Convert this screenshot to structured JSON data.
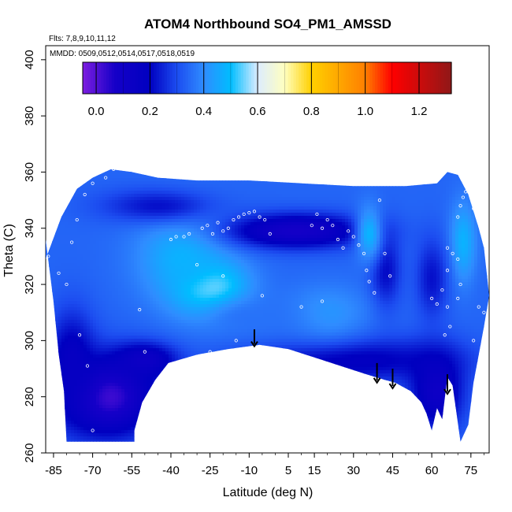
{
  "chart_data": {
    "type": "heatmap",
    "title": "ATOM4 Northbound SO4_PM1_AMSSD",
    "flights_label": "Flts: 7,8,9,10,11,12",
    "dates_label": "MMDD: 0509,0512,0514,0517,0518,0519",
    "xlabel": "Latitude (deg N)",
    "ylabel": "Theta (C)",
    "xlim": [
      -88,
      82
    ],
    "ylim": [
      260,
      405
    ],
    "x_ticks": [
      -85,
      -70,
      -55,
      -40,
      -25,
      -10,
      5,
      15,
      30,
      45,
      60,
      75
    ],
    "x_tick_labels": [
      "-85",
      "-70",
      "-55",
      "-40",
      "-25",
      "-10",
      "5",
      "15",
      "30",
      "45",
      "60",
      "75"
    ],
    "y_ticks": [
      260,
      280,
      300,
      320,
      340,
      360,
      380,
      400
    ],
    "y_tick_labels": [
      "260",
      "280",
      "300",
      "320",
      "340",
      "360",
      "380",
      "400"
    ],
    "colorbar": {
      "range": [
        -0.05,
        1.32
      ],
      "ticks": [
        0,
        0.2,
        0.4,
        0.6,
        0.8,
        1.0,
        1.2
      ],
      "tick_labels": [
        "0.0",
        "0.2",
        "0.4",
        "0.6",
        "0.8",
        "1.0",
        "1.2"
      ],
      "stops": [
        {
          "value": -0.05,
          "color": "#7d1ee0"
        },
        {
          "value": 0.07,
          "color": "#1500c8"
        },
        {
          "value": 0.2,
          "color": "#0000c0"
        },
        {
          "value": 0.3,
          "color": "#1c4cf0"
        },
        {
          "value": 0.4,
          "color": "#2f8cff"
        },
        {
          "value": 0.5,
          "color": "#00bdff"
        },
        {
          "value": 0.6,
          "color": "#dcecff"
        },
        {
          "value": 0.7,
          "color": "#ffffc0"
        },
        {
          "value": 0.8,
          "color": "#ffd000"
        },
        {
          "value": 1.0,
          "color": "#ff7f00"
        },
        {
          "value": 1.1,
          "color": "#ff0000"
        },
        {
          "value": 1.32,
          "color": "#901818"
        }
      ]
    },
    "field": {
      "upper_boundary": [
        [
          -88,
          329
        ],
        [
          -82,
          344
        ],
        [
          -76,
          354
        ],
        [
          -70,
          358
        ],
        [
          -63,
          361
        ],
        [
          -55,
          360
        ],
        [
          -45,
          358
        ],
        [
          -30,
          357
        ],
        [
          -10,
          357
        ],
        [
          10,
          356
        ],
        [
          30,
          355
        ],
        [
          50,
          355
        ],
        [
          62,
          356
        ],
        [
          66,
          360
        ],
        [
          70,
          359
        ],
        [
          74,
          352
        ],
        [
          78,
          340
        ],
        [
          80,
          333
        ],
        [
          82,
          316
        ]
      ],
      "lower_boundary": [
        [
          -88,
          336
        ],
        [
          -85,
          314
        ],
        [
          -83,
          295
        ],
        [
          -81,
          282
        ],
        [
          -80,
          264
        ],
        [
          -54,
          264
        ],
        [
          -54,
          268
        ],
        [
          -51,
          278
        ],
        [
          -46,
          286
        ],
        [
          -41,
          292
        ],
        [
          -30,
          295
        ],
        [
          -18,
          297
        ],
        [
          -6,
          298.5
        ],
        [
          5,
          297
        ],
        [
          15,
          294
        ],
        [
          25,
          291
        ],
        [
          35,
          288
        ],
        [
          42,
          286
        ],
        [
          46,
          285
        ],
        [
          52,
          282
        ],
        [
          56,
          278
        ],
        [
          58,
          274
        ],
        [
          60,
          268
        ],
        [
          62,
          276
        ],
        [
          64,
          272
        ],
        [
          66,
          287
        ],
        [
          68,
          284
        ],
        [
          71,
          264
        ],
        [
          74,
          270
        ],
        [
          76,
          285
        ],
        [
          78,
          295
        ],
        [
          80,
          305
        ],
        [
          82,
          316
        ]
      ],
      "base_value": 0.34,
      "features": [
        {
          "lat": -25,
          "theta": 318,
          "rlat": 14,
          "rtheta": 10,
          "value": 0.62
        },
        {
          "lat": -35,
          "theta": 330,
          "rlat": 18,
          "rtheta": 16,
          "value": 0.48
        },
        {
          "lat": 8,
          "theta": 339,
          "rlat": 26,
          "rtheta": 6,
          "value": 0.08
        },
        {
          "lat": -45,
          "theta": 348,
          "rlat": 22,
          "rtheta": 6,
          "value": 0.22
        },
        {
          "lat": -64,
          "theta": 280,
          "rlat": 18,
          "rtheta": 14,
          "value": 0.02
        },
        {
          "lat": -50,
          "theta": 293,
          "rlat": 12,
          "rtheta": 6,
          "value": 0.12
        },
        {
          "lat": 30,
          "theta": 293,
          "rlat": 40,
          "rtheta": 8,
          "value": 0.18
        },
        {
          "lat": 62,
          "theta": 282,
          "rlat": 10,
          "rtheta": 14,
          "value": 0.12
        },
        {
          "lat": -78,
          "theta": 292,
          "rlat": 9,
          "rtheta": 18,
          "value": 0.16
        },
        {
          "lat": 42,
          "theta": 325,
          "rlat": 6,
          "rtheta": 14,
          "value": 0.2
        },
        {
          "lat": 36,
          "theta": 338,
          "rlat": 5,
          "rtheta": 10,
          "value": 0.48
        },
        {
          "lat": 72,
          "theta": 335,
          "rlat": 5,
          "rtheta": 14,
          "value": 0.48
        },
        {
          "lat": 60,
          "theta": 322,
          "rlat": 6,
          "rtheta": 14,
          "value": 0.22
        },
        {
          "lat": 20,
          "theta": 310,
          "rlat": 16,
          "rtheta": 10,
          "value": 0.42
        },
        {
          "lat": -10,
          "theta": 308,
          "rlat": 20,
          "rtheta": 8,
          "value": 0.36
        }
      ]
    },
    "obs_points": [
      [
        -87,
        330
      ],
      [
        -83,
        324
      ],
      [
        -80,
        320
      ],
      [
        -75,
        302
      ],
      [
        -72,
        291
      ],
      [
        -70,
        268
      ],
      [
        -68,
        263
      ],
      [
        -78,
        335
      ],
      [
        -76,
        343
      ],
      [
        -73,
        352
      ],
      [
        -70,
        356
      ],
      [
        -65,
        358
      ],
      [
        -62,
        361
      ],
      [
        -52,
        311
      ],
      [
        -50,
        296
      ],
      [
        -48,
        278
      ],
      [
        -40,
        336
      ],
      [
        -38,
        337
      ],
      [
        -35,
        337
      ],
      [
        -33,
        338
      ],
      [
        -30,
        327
      ],
      [
        -28,
        340
      ],
      [
        -26,
        341
      ],
      [
        -24,
        338
      ],
      [
        -22,
        342
      ],
      [
        -20,
        339
      ],
      [
        -18,
        340
      ],
      [
        -16,
        343
      ],
      [
        -14,
        344
      ],
      [
        -12,
        345
      ],
      [
        -10,
        345.5
      ],
      [
        -8,
        346
      ],
      [
        -6,
        344
      ],
      [
        -4,
        343
      ],
      [
        -2,
        338
      ],
      [
        -25,
        296
      ],
      [
        -20,
        323
      ],
      [
        -15,
        300
      ],
      [
        -5,
        316
      ],
      [
        16,
        345
      ],
      [
        14,
        341
      ],
      [
        18,
        340
      ],
      [
        20,
        343
      ],
      [
        22,
        341
      ],
      [
        24,
        336
      ],
      [
        26,
        333
      ],
      [
        28,
        339
      ],
      [
        30,
        337
      ],
      [
        32,
        334
      ],
      [
        34,
        331
      ],
      [
        35,
        325
      ],
      [
        36,
        321
      ],
      [
        38,
        317
      ],
      [
        40,
        350
      ],
      [
        42,
        331
      ],
      [
        44,
        323
      ],
      [
        18,
        314
      ],
      [
        10,
        312
      ],
      [
        60,
        315
      ],
      [
        62,
        313
      ],
      [
        64,
        318
      ],
      [
        66,
        325
      ],
      [
        66,
        333
      ],
      [
        68,
        331
      ],
      [
        70,
        329
      ],
      [
        70,
        344
      ],
      [
        71,
        348
      ],
      [
        72,
        351
      ],
      [
        73,
        353
      ],
      [
        74,
        354
      ],
      [
        75,
        356
      ],
      [
        76,
        347
      ],
      [
        66,
        312
      ],
      [
        78,
        312
      ],
      [
        80,
        310
      ],
      [
        76,
        300
      ],
      [
        65,
        302
      ],
      [
        67,
        305
      ],
      [
        70,
        315
      ],
      [
        71,
        320
      ]
    ],
    "arrows": [
      {
        "lat": -8,
        "theta_from": 304,
        "theta_to": 298
      },
      {
        "lat": 39,
        "theta_from": 292,
        "theta_to": 285
      },
      {
        "lat": 45,
        "theta_from": 290,
        "theta_to": 283
      },
      {
        "lat": 66,
        "theta_from": 288,
        "theta_to": 281
      }
    ]
  }
}
